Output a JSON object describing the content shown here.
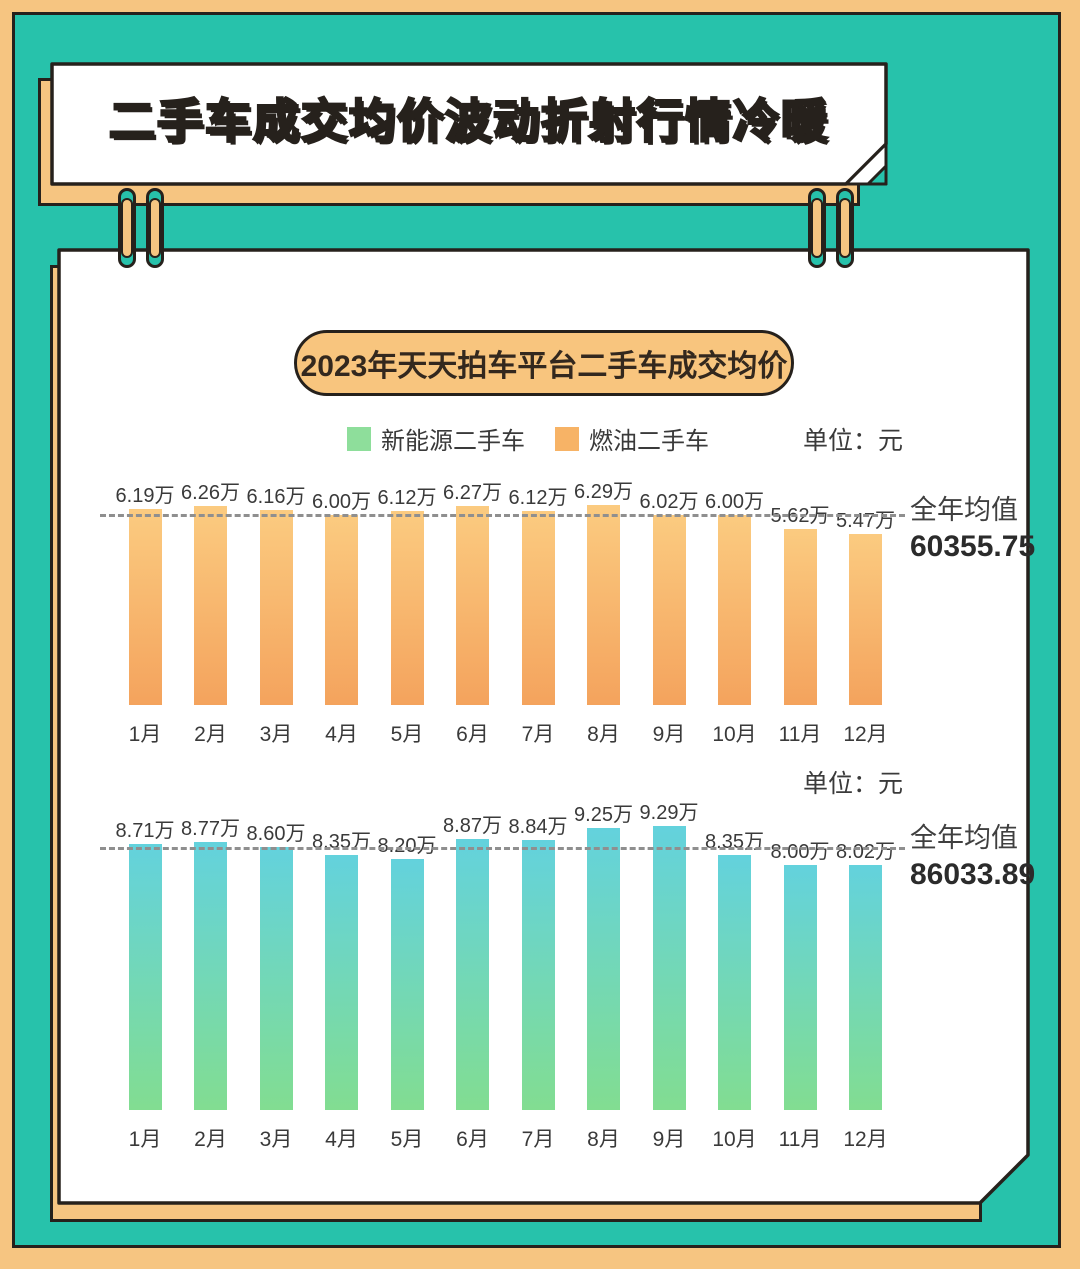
{
  "banner": {
    "title": "二手车成交均价波动折射行情冷暖"
  },
  "card": {
    "title": "2023年天天拍车平台二手车成交均价",
    "legend": {
      "items": [
        {
          "label": "新能源二手车",
          "color": "#8EDE9B"
        },
        {
          "label": "燃油二手车",
          "color": "#F7B366"
        }
      ]
    }
  },
  "colors": {
    "frame_orange": "#F6C581",
    "teal_background": "#27C2AB",
    "dark_border": "#26211C",
    "banner_text": "#F5BE74",
    "title_pill": "#F8C57E",
    "fuel_bar_top": "#FBCB80",
    "fuel_bar_bottom": "#F4A35D",
    "nev_bar_top": "#63D2DD",
    "nev_bar_bottom": "#82DD91",
    "dashed_average_line": "#8F8F8F"
  },
  "chart_data": [
    {
      "type": "bar",
      "series_name": "燃油二手车",
      "unit": "单位：元",
      "categories": [
        "1月",
        "2月",
        "3月",
        "4月",
        "5月",
        "6月",
        "7月",
        "8月",
        "9月",
        "10月",
        "11月",
        "12月"
      ],
      "values_wan": [
        6.19,
        6.26,
        6.16,
        6.0,
        6.12,
        6.27,
        6.12,
        6.29,
        6.02,
        6.0,
        5.62,
        5.47
      ],
      "value_labels": [
        "6.19万",
        "6.26万",
        "6.16万",
        "6.00万",
        "6.12万",
        "6.27万",
        "6.12万",
        "6.29万",
        "6.02万",
        "6.00万",
        "5.62万",
        "5.47万"
      ],
      "annual_average_label": "全年均值",
      "annual_average": "60355.75",
      "layout_hints": {
        "average_reference_line": "dashed",
        "y_axis": "hidden, values labeled above bars"
      }
    },
    {
      "type": "bar",
      "series_name": "新能源二手车",
      "unit": "单位：元",
      "categories": [
        "1月",
        "2月",
        "3月",
        "4月",
        "5月",
        "6月",
        "7月",
        "8月",
        "9月",
        "10月",
        "11月",
        "12月"
      ],
      "values_wan": [
        8.71,
        8.77,
        8.6,
        8.35,
        8.2,
        8.87,
        8.84,
        9.25,
        9.29,
        8.35,
        8.0,
        8.02
      ],
      "value_labels": [
        "8.71万",
        "8.77万",
        "8.60万",
        "8.35万",
        "8.20万",
        "8.87万",
        "8.84万",
        "9.25万",
        "9.29万",
        "8.35万",
        "8.00万",
        "8.02万"
      ],
      "annual_average_label": "全年均值",
      "annual_average": "86033.89",
      "layout_hints": {
        "average_reference_line": "dashed",
        "y_axis": "hidden, values labeled above bars"
      }
    }
  ]
}
